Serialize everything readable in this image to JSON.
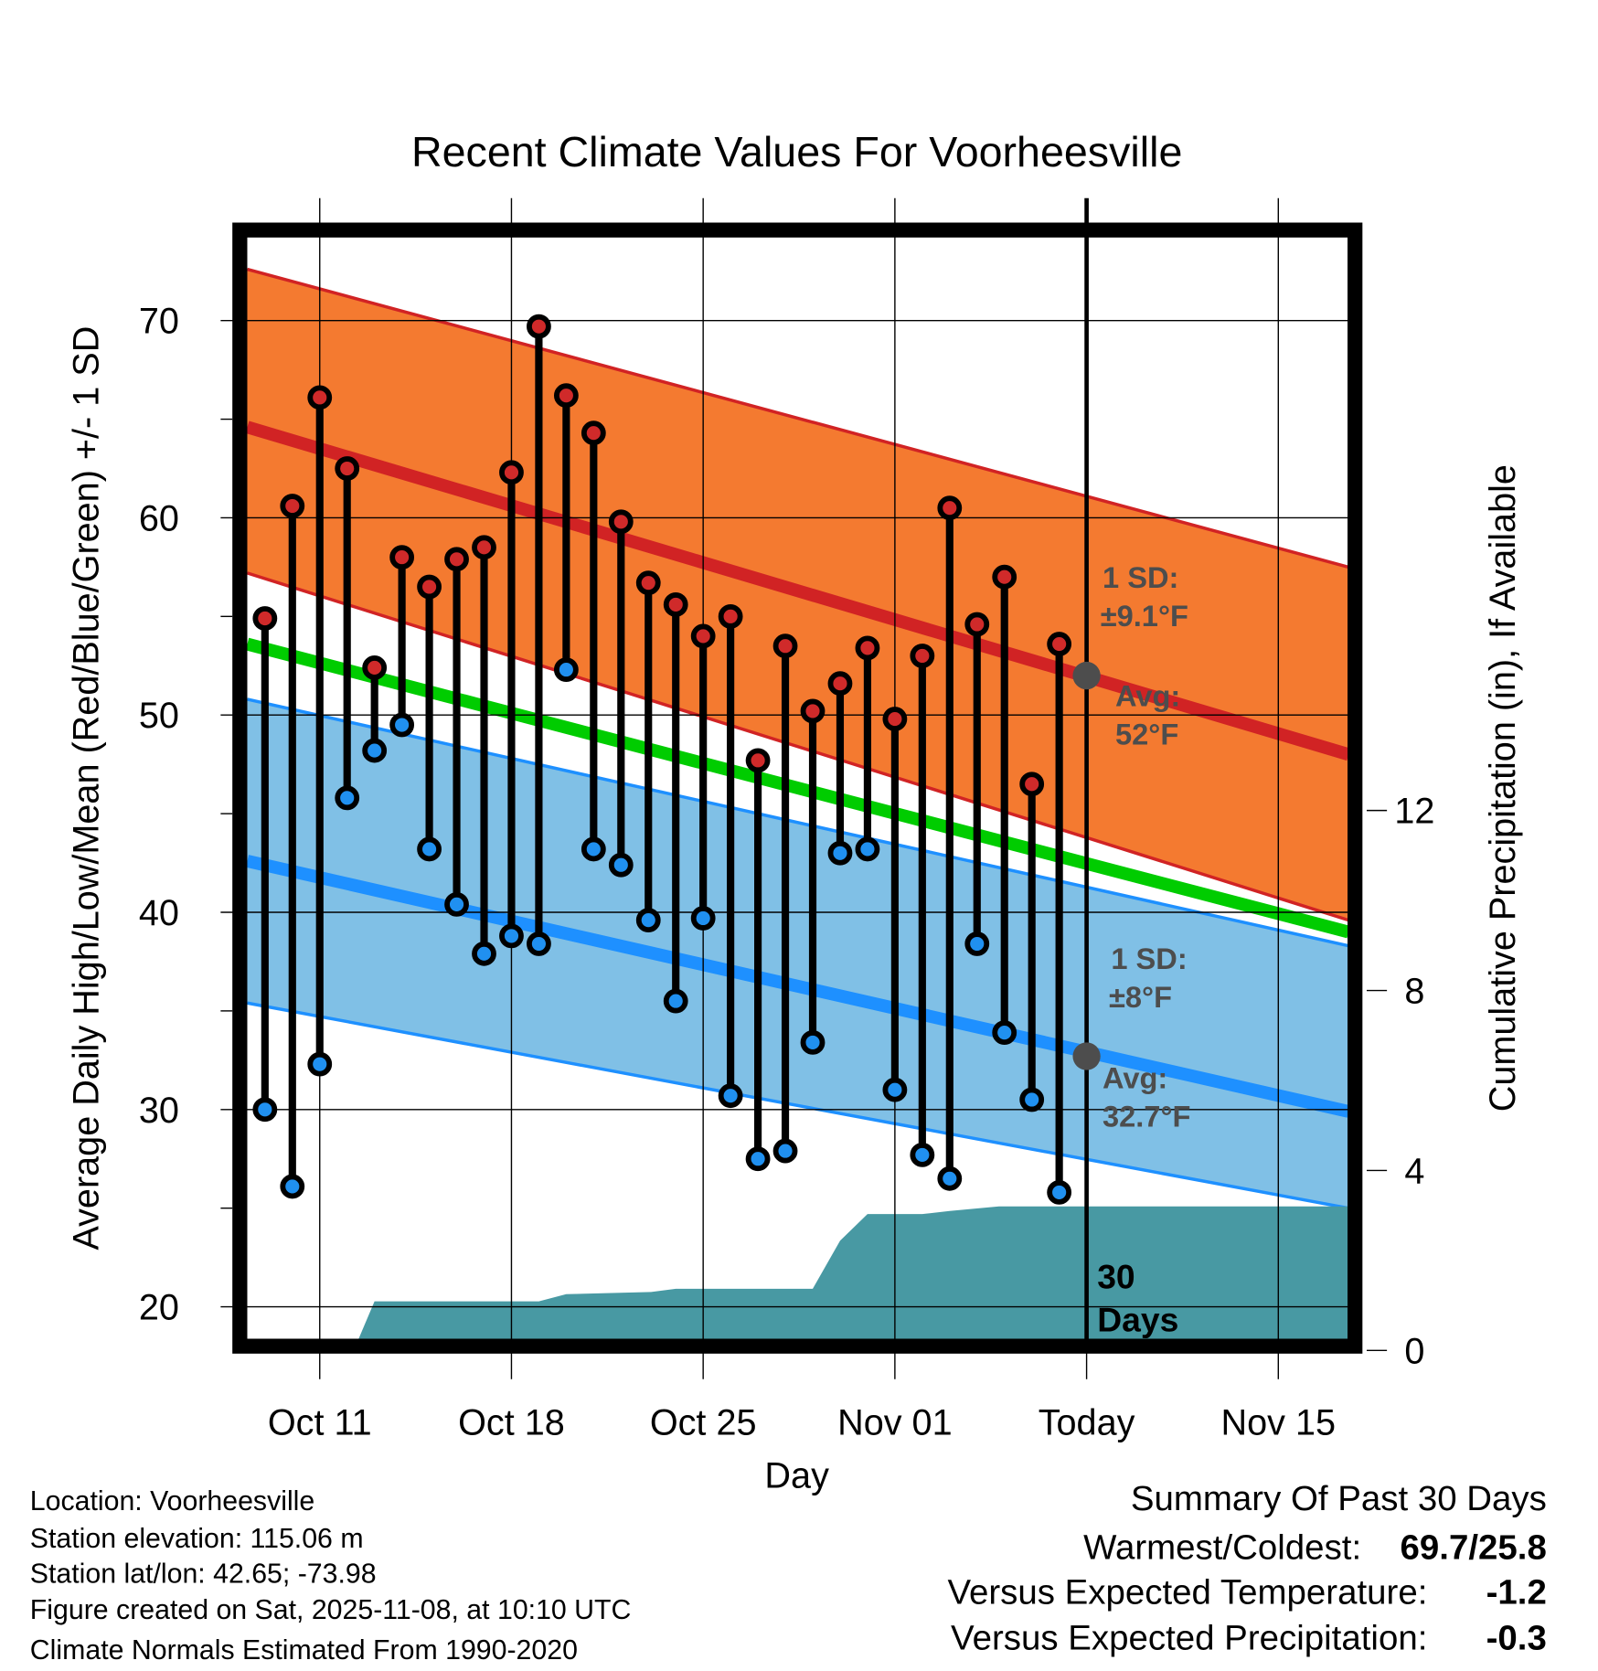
{
  "chart_data": {
    "type": "line",
    "title": "Recent Climate Values For Voorheesville",
    "xlabel": "Day",
    "ylabel": "Average Daily High/Low/Mean (Red/Blue/Green) +/- 1 SD",
    "y2label": "Cumulative Precipitation (in), If Available",
    "ylim": [
      18.2,
      74.6
    ],
    "y2lim": [
      0,
      24
    ],
    "xlim_days_from_oct9": [
      -0.65,
      39.57
    ],
    "grid": true,
    "yticks": [
      20,
      30,
      40,
      50,
      60,
      70
    ],
    "y2ticks": [
      0,
      4,
      8,
      12
    ],
    "xticks": [
      {
        "label": "Oct 11",
        "day": 2
      },
      {
        "label": "Oct 18",
        "day": 9
      },
      {
        "label": "Oct 25",
        "day": 16
      },
      {
        "label": "Nov 01",
        "day": 23
      },
      {
        "label": "Today",
        "day": 30
      },
      {
        "label": "Nov 15",
        "day": 37
      }
    ],
    "dates": [
      "Oct 09",
      "Oct 10",
      "Oct 11",
      "Oct 12",
      "Oct 13",
      "Oct 14",
      "Oct 15",
      "Oct 16",
      "Oct 17",
      "Oct 18",
      "Oct 19",
      "Oct 20",
      "Oct 21",
      "Oct 22",
      "Oct 23",
      "Oct 24",
      "Oct 25",
      "Oct 26",
      "Oct 27",
      "Oct 28",
      "Oct 29",
      "Oct 30",
      "Oct 31",
      "Nov 01",
      "Nov 02",
      "Nov 03",
      "Nov 04",
      "Nov 05",
      "Nov 06",
      "Nov 07"
    ],
    "highs": [
      54.9,
      60.6,
      66.1,
      62.5,
      52.4,
      58.0,
      56.5,
      57.9,
      58.5,
      62.3,
      69.7,
      66.2,
      64.3,
      59.8,
      56.7,
      55.6,
      54.0,
      55.0,
      47.7,
      53.5,
      50.2,
      51.6,
      53.4,
      49.8,
      53.0,
      60.5,
      54.6,
      57.0,
      46.5,
      53.6
    ],
    "lows": [
      30.0,
      26.1,
      32.3,
      45.8,
      48.2,
      49.5,
      43.2,
      40.4,
      37.9,
      38.8,
      38.4,
      52.3,
      43.2,
      42.4,
      39.6,
      35.5,
      39.7,
      30.7,
      27.5,
      27.9,
      33.4,
      43.0,
      43.2,
      31.0,
      27.7,
      26.5,
      38.4,
      33.9,
      30.5,
      25.8
    ],
    "normals": {
      "high_upper": [
        72.6,
        57.5
      ],
      "high_mean": [
        64.6,
        48.0
      ],
      "high_lower": [
        57.2,
        39.6
      ],
      "mean": [
        53.6,
        39.0
      ],
      "low_upper": [
        50.8,
        38.3
      ],
      "low_mean": [
        42.6,
        29.9
      ],
      "low_lower": [
        35.4,
        25.0
      ]
    },
    "precip_cumulative": [
      [
        3.24,
        0
      ],
      [
        4.0,
        1.09
      ],
      [
        10.0,
        1.09
      ],
      [
        11.0,
        1.25
      ],
      [
        14.1,
        1.3
      ],
      [
        15.0,
        1.37
      ],
      [
        20.0,
        1.37
      ],
      [
        21.0,
        2.44
      ],
      [
        22.0,
        3.03
      ],
      [
        24.0,
        3.03
      ],
      [
        25.0,
        3.1
      ],
      [
        26.8,
        3.2
      ],
      [
        39.57,
        3.2
      ]
    ],
    "annotations": {
      "high_sd_label": "1 SD:",
      "high_sd_value": "±9.1°F",
      "high_avg_label": "Avg:",
      "high_avg_value": "52°F",
      "low_sd_label": "1 SD:",
      "low_sd_value": "±8°F",
      "low_avg_label": "Avg:",
      "low_avg_value": "32.7°F",
      "today_high_avg": 52,
      "today_low_avg": 32.7,
      "window_label_1": "30",
      "window_label_2": "Days"
    },
    "colors": {
      "high_band": "#F47A30",
      "high_line": "#D12324",
      "mean_line": "#00CC00",
      "low_band": "#80C0E6",
      "low_line": "#1E90FF",
      "precip": "#4899A3",
      "high_dot": "#D02A2A",
      "low_dot": "#2090F0",
      "avg_dot": "#4d4d4d"
    }
  },
  "footer": {
    "location": "Location: Voorheesville",
    "elevation": "Station elevation: 115.06 m",
    "latlon": "Station lat/lon: 42.65; -73.98",
    "created": "Figure created on Sat, 2025-11-08, at 10:10 UTC",
    "normals": "Climate Normals Estimated From 1990-2020"
  },
  "summary": {
    "title": "Summary Of Past 30 Days",
    "warmest_label": "Warmest/Coldest:",
    "warmest_value": "69.7/25.8",
    "temp_label": "Versus Expected Temperature:",
    "temp_value": "-1.2",
    "temp_color": "#1E90FF",
    "precip_label": "Versus Expected Precipitation:",
    "precip_value": "-0.3",
    "precip_color": "#A0522D"
  }
}
